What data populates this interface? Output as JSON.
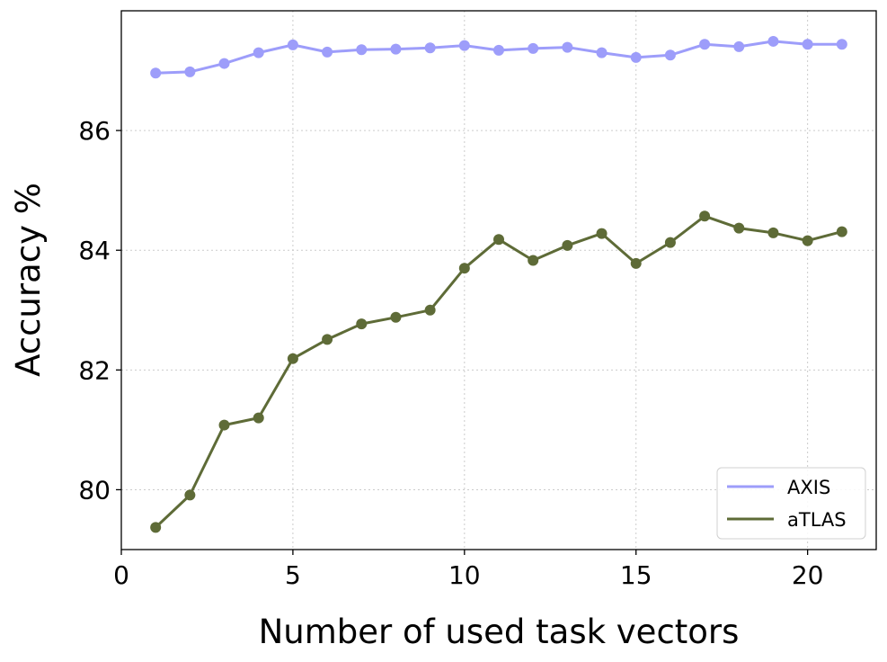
{
  "chart_data": {
    "type": "line",
    "title": "",
    "xlabel": "Number of used task vectors",
    "ylabel": "Accuracy %",
    "xlim": [
      0,
      22
    ],
    "ylim": [
      79.0,
      88.0
    ],
    "x_ticks": [
      0,
      5,
      10,
      15,
      20
    ],
    "y_ticks": [
      80,
      82,
      84,
      86
    ],
    "grid": true,
    "legend_position": "bottom-right",
    "x": [
      1,
      2,
      3,
      4,
      5,
      6,
      7,
      8,
      9,
      10,
      11,
      12,
      13,
      14,
      15,
      16,
      17,
      18,
      19,
      20,
      21
    ],
    "series": [
      {
        "name": "AXIS",
        "color": "#9d9dfa",
        "values": [
          86.96,
          86.98,
          87.12,
          87.3,
          87.43,
          87.31,
          87.35,
          87.36,
          87.38,
          87.42,
          87.34,
          87.37,
          87.39,
          87.3,
          87.22,
          87.26,
          87.44,
          87.4,
          87.49,
          87.44,
          87.44
        ]
      },
      {
        "name": "aTLAS",
        "color": "#5e6b37",
        "values": [
          79.37,
          79.91,
          81.08,
          81.2,
          82.19,
          82.51,
          82.77,
          82.88,
          83.0,
          83.7,
          84.18,
          83.83,
          84.08,
          84.28,
          83.78,
          84.13,
          84.57,
          84.37,
          84.29,
          84.16,
          84.31
        ]
      }
    ]
  }
}
